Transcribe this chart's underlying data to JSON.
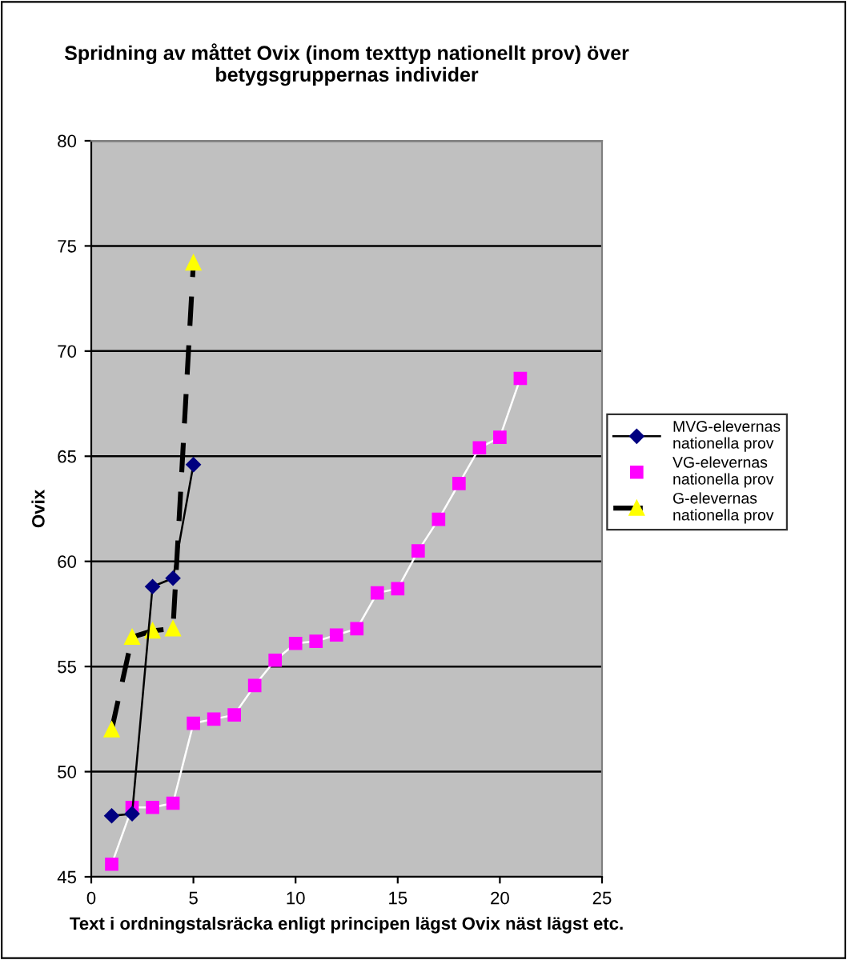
{
  "chart_data": {
    "type": "line",
    "title": "Spridning av måttet Ovix (inom texttyp nationellt prov) över betygsgruppernas individer",
    "xlabel": "Text i ordningstalsräcka enligt principen lägst Ovix näst lägst etc.",
    "ylabel": "Ovix",
    "xlim": [
      0,
      25
    ],
    "xticks": [
      0,
      5,
      10,
      15,
      20,
      25
    ],
    "ylim": [
      45,
      80
    ],
    "yticks": [
      45,
      50,
      55,
      60,
      65,
      70,
      75,
      80
    ],
    "grid": "y",
    "legend": "right",
    "series": [
      {
        "name": "MVG-elevernas nationella prov",
        "color": "#000080",
        "marker": "diamond",
        "line_style": "solid",
        "x": [
          1,
          2,
          3,
          4,
          5
        ],
        "values": [
          47.9,
          48.0,
          58.8,
          59.2,
          64.6
        ]
      },
      {
        "name": "VG-elevernas nationella prov",
        "color": "#ff00ff",
        "marker": "square",
        "line_style": "solid",
        "x": [
          1,
          2,
          3,
          4,
          5,
          6,
          7,
          8,
          9,
          10,
          11,
          12,
          13,
          14,
          15,
          16,
          17,
          18,
          19,
          20,
          21
        ],
        "values": [
          45.6,
          48.3,
          48.3,
          48.5,
          52.3,
          52.5,
          52.7,
          54.1,
          55.3,
          56.1,
          56.2,
          56.5,
          56.8,
          58.5,
          58.7,
          60.5,
          62.0,
          63.7,
          65.4,
          65.9,
          68.7
        ]
      },
      {
        "name": "G-elevernas nationella prov",
        "color": "#ffff00",
        "marker": "triangle",
        "line_style": "dashed",
        "x": [
          1,
          2,
          3,
          4,
          5
        ],
        "values": [
          52.0,
          56.4,
          56.7,
          56.8,
          74.2
        ]
      }
    ]
  }
}
